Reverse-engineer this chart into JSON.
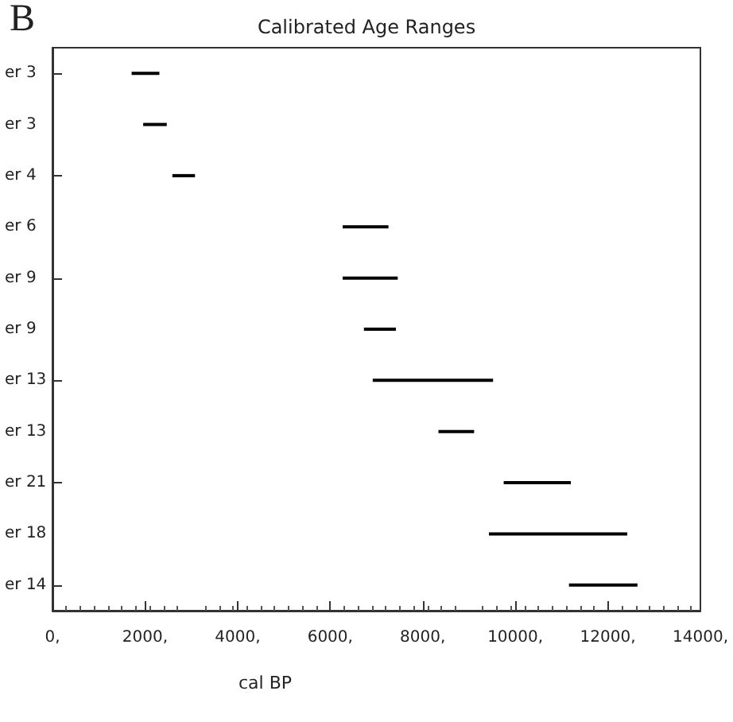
{
  "chart_data": {
    "type": "bar",
    "orientation": "horizontal",
    "title": "Calibrated Age Ranges",
    "xlabel": "cal BP",
    "annotations": [
      "B"
    ],
    "categories": [
      "er 3",
      "er 3",
      "er 4",
      "er 6",
      "er 9",
      "er 9",
      "er 13",
      "er 13",
      "er 21",
      "er 18",
      "er 14"
    ],
    "base": [
      1710,
      1960,
      2590,
      6270,
      6270,
      6730,
      6920,
      8340,
      9750,
      9430,
      11160
    ],
    "values": [
      600,
      510,
      490,
      990,
      1190,
      690,
      2600,
      770,
      1450,
      2990,
      1480
    ],
    "color": "#000000",
    "xlim": [
      0,
      14000
    ],
    "xticks": [
      {
        "value": 0,
        "label": "0,"
      },
      {
        "value": 2000,
        "label": "2000,"
      },
      {
        "value": 4000,
        "label": "4000,"
      },
      {
        "value": 6000,
        "label": "6000,"
      },
      {
        "value": 8000,
        "label": "8000,"
      },
      {
        "value": 10000,
        "label": "10000,"
      },
      {
        "value": 12000,
        "label": "12000,"
      },
      {
        "value": 14000,
        "label": "14000,"
      }
    ],
    "grid": false
  }
}
